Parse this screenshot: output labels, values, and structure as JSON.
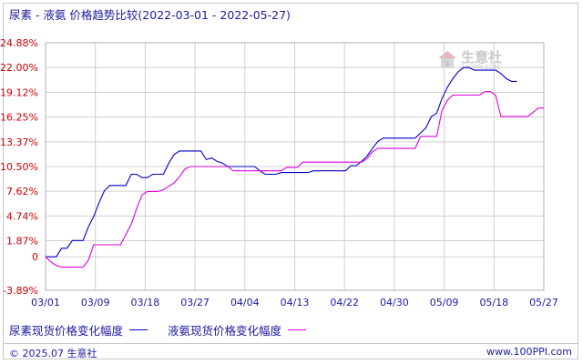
{
  "title": "尿素 - 液氨 价格趋势比较(2022-03-01 - 2022-05-27)",
  "legend": [
    {
      "label": "尿素现货价格变化幅度",
      "color": "#0000cc"
    },
    {
      "label": "液氨现货价格变化幅度",
      "color": "#e000e0"
    }
  ],
  "footer": {
    "copyright": "© 2025.07 生意社",
    "site": "www.100PPI.com"
  },
  "watermark": {
    "text": "生意社",
    "sub": "100PPI.COM"
  },
  "colors": {
    "grid": "#cfcfcf",
    "axis_label_pos": "#cc0000",
    "axis_label_neg": "#cc0000",
    "x_label": "#1a1aa0"
  },
  "chart_data": {
    "type": "line",
    "x_ticks": [
      "03/01",
      "03/09",
      "03/18",
      "03/27",
      "04/04",
      "04/13",
      "04/22",
      "04/30",
      "05/09",
      "05/18",
      "05/27"
    ],
    "y_ticks": [
      "24.88%",
      "22.00%",
      "19.12%",
      "16.25%",
      "13.37%",
      "10.50%",
      "7.62%",
      "4.74%",
      "1.87%",
      "0",
      "-3.89%"
    ],
    "y_tick_values": [
      24.88,
      22.0,
      19.12,
      16.25,
      13.37,
      10.5,
      7.62,
      4.74,
      1.87,
      0,
      -3.89
    ],
    "ylim": [
      -3.89,
      24.88
    ],
    "x_range": [
      "03/01",
      "05/27"
    ],
    "grid": true,
    "series": [
      {
        "name": "尿素现货价格变化幅度",
        "color": "#0000cc",
        "points": [
          [
            0,
            0
          ],
          [
            1,
            0
          ],
          [
            2,
            0
          ],
          [
            3,
            1.0
          ],
          [
            4,
            1.0
          ],
          [
            5,
            1.9
          ],
          [
            6,
            1.9
          ],
          [
            7,
            1.9
          ],
          [
            8,
            3.5
          ],
          [
            9,
            4.7
          ],
          [
            10,
            6.3
          ],
          [
            11,
            7.7
          ],
          [
            12,
            8.3
          ],
          [
            13,
            8.3
          ],
          [
            14,
            8.3
          ],
          [
            15,
            8.3
          ],
          [
            16,
            9.6
          ],
          [
            17,
            9.6
          ],
          [
            18,
            9.2
          ],
          [
            19,
            9.2
          ],
          [
            20,
            9.6
          ],
          [
            21,
            9.6
          ],
          [
            22,
            9.6
          ],
          [
            23,
            10.9
          ],
          [
            24,
            11.9
          ],
          [
            25,
            12.3
          ],
          [
            26,
            12.3
          ],
          [
            27,
            12.3
          ],
          [
            28,
            12.3
          ],
          [
            29,
            12.3
          ],
          [
            30,
            11.3
          ],
          [
            31,
            11.5
          ],
          [
            32,
            11.1
          ],
          [
            33,
            10.9
          ],
          [
            34,
            10.5
          ],
          [
            35,
            10.5
          ],
          [
            36,
            10.5
          ],
          [
            37,
            10.5
          ],
          [
            38,
            10.5
          ],
          [
            39,
            10.5
          ],
          [
            40,
            10.0
          ],
          [
            41,
            9.6
          ],
          [
            42,
            9.6
          ],
          [
            43,
            9.6
          ],
          [
            44,
            9.8
          ],
          [
            45,
            9.8
          ],
          [
            46,
            9.8
          ],
          [
            47,
            9.8
          ],
          [
            48,
            9.8
          ],
          [
            49,
            9.8
          ],
          [
            50,
            10.0
          ],
          [
            51,
            10.0
          ],
          [
            52,
            10.0
          ],
          [
            53,
            10.0
          ],
          [
            54,
            10.0
          ],
          [
            55,
            10.0
          ],
          [
            56,
            10.0
          ],
          [
            57,
            10.6
          ],
          [
            58,
            10.6
          ],
          [
            59,
            11.1
          ],
          [
            60,
            11.7
          ],
          [
            61,
            12.6
          ],
          [
            62,
            13.4
          ],
          [
            63,
            13.8
          ],
          [
            64,
            13.8
          ],
          [
            65,
            13.8
          ],
          [
            66,
            13.8
          ],
          [
            67,
            13.8
          ],
          [
            68,
            13.8
          ],
          [
            69,
            13.8
          ],
          [
            70,
            14.4
          ],
          [
            71,
            15.0
          ],
          [
            72,
            16.3
          ],
          [
            73,
            16.7
          ],
          [
            74,
            18.4
          ],
          [
            75,
            19.7
          ],
          [
            76,
            20.7
          ],
          [
            77,
            21.5
          ],
          [
            78,
            22.0
          ],
          [
            79,
            22.0
          ],
          [
            80,
            21.7
          ],
          [
            81,
            21.7
          ],
          [
            82,
            21.7
          ],
          [
            83,
            21.7
          ],
          [
            84,
            21.7
          ],
          [
            85,
            21.3
          ],
          [
            86,
            20.7
          ],
          [
            87,
            20.4
          ],
          [
            88,
            20.4
          ]
        ]
      },
      {
        "name": "液氨现货价格变化幅度",
        "color": "#e000e0",
        "points": [
          [
            0,
            0
          ],
          [
            1,
            -0.6
          ],
          [
            2,
            -1.0
          ],
          [
            3,
            -1.2
          ],
          [
            4,
            -1.2
          ],
          [
            5,
            -1.2
          ],
          [
            6,
            -1.2
          ],
          [
            7,
            -1.2
          ],
          [
            8,
            -0.4
          ],
          [
            9,
            1.4
          ],
          [
            10,
            1.4
          ],
          [
            11,
            1.4
          ],
          [
            12,
            1.4
          ],
          [
            13,
            1.4
          ],
          [
            14,
            1.4
          ],
          [
            15,
            2.6
          ],
          [
            16,
            3.8
          ],
          [
            17,
            5.6
          ],
          [
            18,
            7.2
          ],
          [
            19,
            7.6
          ],
          [
            20,
            7.6
          ],
          [
            21,
            7.6
          ],
          [
            22,
            7.8
          ],
          [
            23,
            8.2
          ],
          [
            24,
            8.6
          ],
          [
            25,
            9.3
          ],
          [
            26,
            10.2
          ],
          [
            27,
            10.5
          ],
          [
            28,
            10.5
          ],
          [
            29,
            10.5
          ],
          [
            30,
            10.5
          ],
          [
            31,
            10.5
          ],
          [
            32,
            10.5
          ],
          [
            33,
            10.5
          ],
          [
            34,
            10.5
          ],
          [
            35,
            10.0
          ],
          [
            36,
            10.0
          ],
          [
            37,
            10.0
          ],
          [
            38,
            10.0
          ],
          [
            39,
            10.0
          ],
          [
            40,
            10.0
          ],
          [
            41,
            10.0
          ],
          [
            42,
            10.0
          ],
          [
            43,
            10.0
          ],
          [
            44,
            10.0
          ],
          [
            45,
            10.4
          ],
          [
            46,
            10.4
          ],
          [
            47,
            10.4
          ],
          [
            48,
            11.0
          ],
          [
            49,
            11.0
          ],
          [
            50,
            11.0
          ],
          [
            51,
            11.0
          ],
          [
            52,
            11.0
          ],
          [
            53,
            11.0
          ],
          [
            54,
            11.0
          ],
          [
            55,
            11.0
          ],
          [
            56,
            11.0
          ],
          [
            57,
            11.0
          ],
          [
            58,
            11.0
          ],
          [
            59,
            11.0
          ],
          [
            60,
            11.4
          ],
          [
            61,
            12.2
          ],
          [
            62,
            12.6
          ],
          [
            63,
            12.6
          ],
          [
            64,
            12.6
          ],
          [
            65,
            12.6
          ],
          [
            66,
            12.6
          ],
          [
            67,
            12.6
          ],
          [
            68,
            12.6
          ],
          [
            69,
            12.6
          ],
          [
            70,
            14.0
          ],
          [
            71,
            14.0
          ],
          [
            72,
            14.0
          ],
          [
            73,
            14.0
          ],
          [
            74,
            17.0
          ],
          [
            75,
            18.2
          ],
          [
            76,
            18.8
          ],
          [
            77,
            18.8
          ],
          [
            78,
            18.8
          ],
          [
            79,
            18.8
          ],
          [
            80,
            18.8
          ],
          [
            81,
            18.8
          ],
          [
            82,
            19.2
          ],
          [
            83,
            19.2
          ],
          [
            84,
            18.8
          ],
          [
            85,
            16.3
          ],
          [
            86,
            16.3
          ],
          [
            87,
            16.3
          ],
          [
            88,
            16.3
          ],
          [
            89,
            16.3
          ],
          [
            90,
            16.3
          ],
          [
            91,
            16.8
          ],
          [
            92,
            17.3
          ],
          [
            93,
            17.3
          ]
        ]
      }
    ]
  }
}
